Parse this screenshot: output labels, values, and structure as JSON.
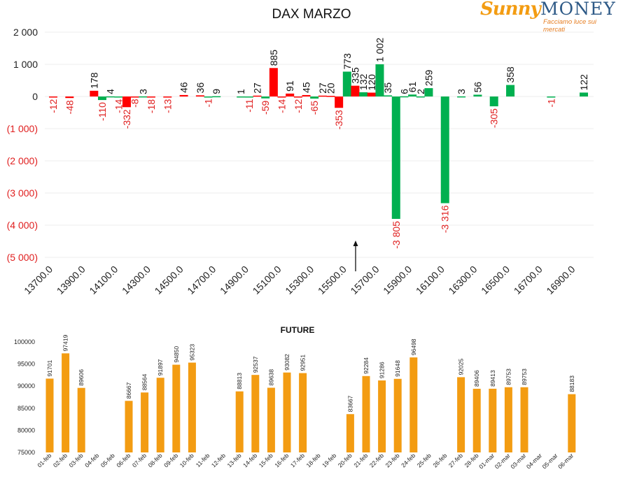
{
  "header": {
    "title": "DAX MARZO",
    "logo_word1": "Sunny",
    "logo_word2": "MONEY",
    "logo_tagline": "Facciamo luce sui mercati"
  },
  "colors": {
    "positive": "#00b050",
    "negative": "#ff0000",
    "highlight": "#ff0000",
    "future_bar": "#f39c12",
    "axis_text": "#222222",
    "negative_axis_text": "#e02020"
  },
  "chart_data": [
    {
      "type": "bar",
      "title": "DAX MARZO",
      "xlabel": "",
      "ylabel": "",
      "ylim": [
        -5000,
        2000
      ],
      "y_ticks": [
        "2 000",
        "1 000",
        "0",
        "(1 000)",
        "(2 000)",
        "(3 000)",
        "(4 000)",
        "(5 000)"
      ],
      "y_tick_values": [
        2000,
        1000,
        0,
        -1000,
        -2000,
        -3000,
        -4000,
        -5000
      ],
      "x_tick_labels": [
        "13700.0",
        "13900.0",
        "14100.0",
        "14300.0",
        "14500.0",
        "14700.0",
        "14900.0",
        "15100.0",
        "15300.0",
        "15500.0",
        "15700.0",
        "15900.0",
        "16100.0",
        "16300.0",
        "16500.0",
        "16700.0",
        "16900.0"
      ],
      "x_range": [
        13700,
        16950
      ],
      "grid": true,
      "annotation": "arrow at 15500",
      "strike_step": 50,
      "bars": [
        {
          "x": 13700,
          "value": -12,
          "label": "-12",
          "color": "red"
        },
        {
          "x": 13800,
          "value": -48,
          "label": "-48",
          "color": "red"
        },
        {
          "x": 13950,
          "value": 178,
          "label": "178",
          "color": "red"
        },
        {
          "x": 14000,
          "value": -110,
          "label": "-110",
          "color": "green"
        },
        {
          "x": 14050,
          "value": 4,
          "label": "4",
          "color": "green"
        },
        {
          "x": 14100,
          "value": -14,
          "label": "-14",
          "color": "green"
        },
        {
          "x": 14150,
          "value": -332,
          "label": "-332",
          "color": "red"
        },
        {
          "x": 14200,
          "value": -8,
          "label": "-8",
          "color": "red"
        },
        {
          "x": 14250,
          "value": 3,
          "label": "3",
          "color": "green"
        },
        {
          "x": 14300,
          "value": -18,
          "label": "-18",
          "color": "red"
        },
        {
          "x": 14400,
          "value": -13,
          "label": "-13",
          "color": "red"
        },
        {
          "x": 14500,
          "value": 46,
          "label": "46",
          "color": "red"
        },
        {
          "x": 14600,
          "value": 36,
          "label": "36",
          "color": "red"
        },
        {
          "x": 14650,
          "value": -1,
          "label": "-1",
          "color": "green"
        },
        {
          "x": 14700,
          "value": 9,
          "label": "9",
          "color": "green"
        },
        {
          "x": 14850,
          "value": 1,
          "label": "1",
          "color": "green"
        },
        {
          "x": 14900,
          "value": -11,
          "label": "-11",
          "color": "green"
        },
        {
          "x": 14950,
          "value": 27,
          "label": "27",
          "color": "red"
        },
        {
          "x": 15000,
          "value": -59,
          "label": "-59",
          "color": "green"
        },
        {
          "x": 15050,
          "value": 885,
          "label": "885",
          "color": "red"
        },
        {
          "x": 15100,
          "value": -14,
          "label": "-14",
          "color": "red"
        },
        {
          "x": 15150,
          "value": 91,
          "label": "91",
          "color": "red"
        },
        {
          "x": 15200,
          "value": -12,
          "label": "-12",
          "color": "red"
        },
        {
          "x": 15250,
          "value": 45,
          "label": "45",
          "color": "red"
        },
        {
          "x": 15300,
          "value": -65,
          "label": "-65",
          "color": "green"
        },
        {
          "x": 15350,
          "value": 27,
          "label": "27",
          "color": "red"
        },
        {
          "x": 15400,
          "value": 20,
          "label": "20",
          "color": "red"
        },
        {
          "x": 15450,
          "value": -353,
          "label": "-353",
          "color": "red"
        },
        {
          "x": 15500,
          "value": 773,
          "label": "773",
          "color": "green"
        },
        {
          "x": 15550,
          "value": 335,
          "label": "335",
          "color": "red"
        },
        {
          "x": 15600,
          "value": 132,
          "label": "132",
          "color": "green"
        },
        {
          "x": 15650,
          "value": 120,
          "label": "120",
          "color": "red"
        },
        {
          "x": 15700,
          "value": 1002,
          "label": "1 002",
          "color": "green"
        },
        {
          "x": 15750,
          "value": 35,
          "label": "35",
          "color": "green"
        },
        {
          "x": 15800,
          "value": -3805,
          "label": "-3 805",
          "color": "green"
        },
        {
          "x": 15850,
          "value": 6,
          "label": "6",
          "color": "green"
        },
        {
          "x": 15900,
          "value": 61,
          "label": "61",
          "color": "green"
        },
        {
          "x": 15950,
          "value": 2,
          "label": "2",
          "color": "green"
        },
        {
          "x": 16000,
          "value": 259,
          "label": "259",
          "color": "green"
        },
        {
          "x": 16100,
          "value": -3316,
          "label": "-3 316",
          "color": "green"
        },
        {
          "x": 16200,
          "value": 3,
          "label": "3",
          "color": "green"
        },
        {
          "x": 16300,
          "value": 56,
          "label": "56",
          "color": "green"
        },
        {
          "x": 16400,
          "value": -305,
          "label": "-305",
          "color": "green"
        },
        {
          "x": 16500,
          "value": 358,
          "label": "358",
          "color": "green"
        },
        {
          "x": 16750,
          "value": -1,
          "label": "-1",
          "color": "green"
        },
        {
          "x": 16950,
          "value": 122,
          "label": "122",
          "color": "green"
        }
      ]
    },
    {
      "type": "bar",
      "title": "FUTURE",
      "xlabel": "",
      "ylabel": "",
      "ylim": [
        75000,
        100000
      ],
      "y_ticks": [
        "100000",
        "95000",
        "90000",
        "85000",
        "80000",
        "75000"
      ],
      "y_tick_values": [
        100000,
        95000,
        90000,
        85000,
        80000,
        75000
      ],
      "grid": false,
      "categories": [
        "01-feb",
        "02-feb",
        "03-feb",
        "04-feb",
        "05-feb",
        "06-feb",
        "07-feb",
        "08-feb",
        "09-feb",
        "10-feb",
        "11-feb",
        "12-feb",
        "13-feb",
        "14-feb",
        "15-feb",
        "16-feb",
        "17-feb",
        "18-feb",
        "19-feb",
        "20-feb",
        "21-feb",
        "22-feb",
        "23-feb",
        "24-feb",
        "25-feb",
        "26-feb",
        "27-feb",
        "28-feb",
        "01-mar",
        "02-mar",
        "03-mar",
        "04-mar",
        "05-mar",
        "06-mar"
      ],
      "values": [
        91701,
        97419,
        89606,
        null,
        null,
        86667,
        88564,
        91897,
        94850,
        95323,
        null,
        null,
        88813,
        92537,
        89638,
        93082,
        92951,
        null,
        null,
        83667,
        92284,
        91286,
        91648,
        96498,
        null,
        null,
        92025,
        89406,
        89413,
        89753,
        89753,
        null,
        null,
        88183
      ],
      "value_labels": [
        "91701",
        "97419",
        "89606",
        "",
        "",
        "86667",
        "88564",
        "91897",
        "94850",
        "95323",
        "",
        "",
        "88813",
        "92537",
        "89638",
        "93082",
        "92951",
        "",
        "",
        "83667",
        "92284",
        "91286",
        "91648",
        "96498",
        "",
        "",
        "92025",
        "89406",
        "89413",
        "89753",
        "89753",
        "",
        "",
        "88183"
      ]
    }
  ]
}
